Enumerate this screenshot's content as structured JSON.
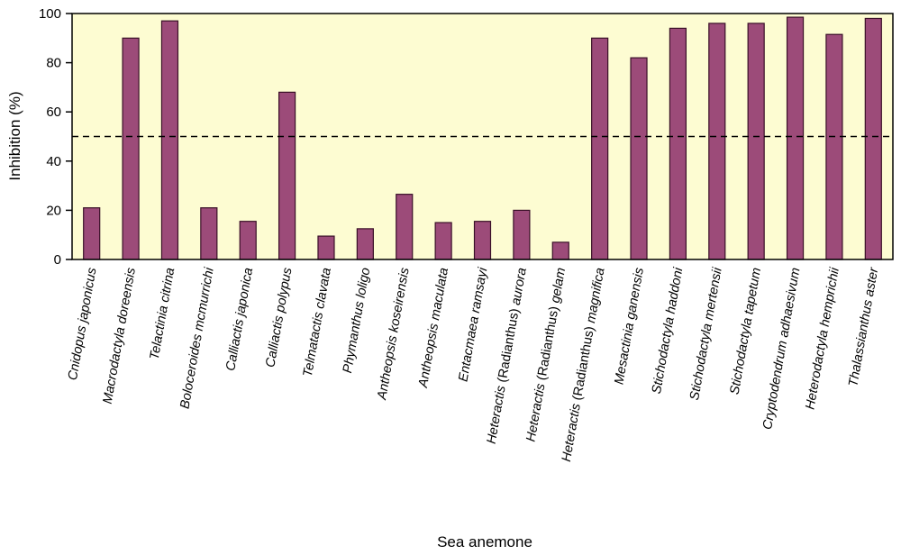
{
  "chart_data": {
    "type": "bar",
    "xlabel": "Sea anemone",
    "ylabel": "Inhibition (%)",
    "ylim": [
      0,
      100
    ],
    "yticks": [
      "0",
      "20",
      "40",
      "60",
      "80",
      "100"
    ],
    "threshold": 50,
    "threshold_style": "dashed",
    "grid": false,
    "colors": {
      "plot_background": "#fdfcd2",
      "bar_fill": "#9c4b79",
      "bar_stroke": "#3a1028",
      "axis": "#000000"
    },
    "categories": [
      {
        "parts": [
          {
            "t": "Cnidopus japonicus",
            "i": true
          }
        ]
      },
      {
        "parts": [
          {
            "t": "Macrodactyla doreensis",
            "i": true
          }
        ]
      },
      {
        "parts": [
          {
            "t": "Telactinia citrina",
            "i": true
          }
        ]
      },
      {
        "parts": [
          {
            "t": "Boloceroides mcmurrichi",
            "i": true
          }
        ]
      },
      {
        "parts": [
          {
            "t": "Calliactis japonica",
            "i": true
          }
        ]
      },
      {
        "parts": [
          {
            "t": "Calliactis polypus",
            "i": true
          }
        ]
      },
      {
        "parts": [
          {
            "t": "Telmatactis clavata",
            "i": true
          }
        ]
      },
      {
        "parts": [
          {
            "t": "Phymanthus loligo",
            "i": true
          }
        ]
      },
      {
        "parts": [
          {
            "t": "Antheopsis koseirensis",
            "i": true
          }
        ]
      },
      {
        "parts": [
          {
            "t": "Antheopsis maculata",
            "i": true
          }
        ]
      },
      {
        "parts": [
          {
            "t": "Entacmaea ramsayi",
            "i": true
          }
        ]
      },
      {
        "parts": [
          {
            "t": "Heteractis ",
            "i": true
          },
          {
            "t": "(Radianthus)",
            "i": false
          },
          {
            "t": " aurora",
            "i": true
          }
        ]
      },
      {
        "parts": [
          {
            "t": "Heteractis ",
            "i": true
          },
          {
            "t": "(Radianthus)",
            "i": false
          },
          {
            "t": " gelam",
            "i": true
          }
        ]
      },
      {
        "parts": [
          {
            "t": "Heteractis ",
            "i": true
          },
          {
            "t": "(Radianthus)",
            "i": false
          },
          {
            "t": " magnifica",
            "i": true
          }
        ]
      },
      {
        "parts": [
          {
            "t": "Mesactinia ganensis",
            "i": true
          }
        ]
      },
      {
        "parts": [
          {
            "t": "Stichodactyla haddoni",
            "i": true
          }
        ]
      },
      {
        "parts": [
          {
            "t": "Stichodactyla mertensii",
            "i": true
          }
        ]
      },
      {
        "parts": [
          {
            "t": "Stichodactyla tapetum",
            "i": true
          }
        ]
      },
      {
        "parts": [
          {
            "t": "Cryptodendrum adhaesivum",
            "i": true
          }
        ]
      },
      {
        "parts": [
          {
            "t": "Heterodactyla hemprichii",
            "i": true
          }
        ]
      },
      {
        "parts": [
          {
            "t": "Thalassianthus aster",
            "i": true
          }
        ]
      }
    ],
    "values": [
      21,
      90,
      97,
      21,
      15.5,
      68,
      9.5,
      12.5,
      26.5,
      15,
      15.5,
      20,
      7,
      90,
      82,
      94,
      96,
      96,
      98.5,
      91.5,
      98
    ]
  }
}
